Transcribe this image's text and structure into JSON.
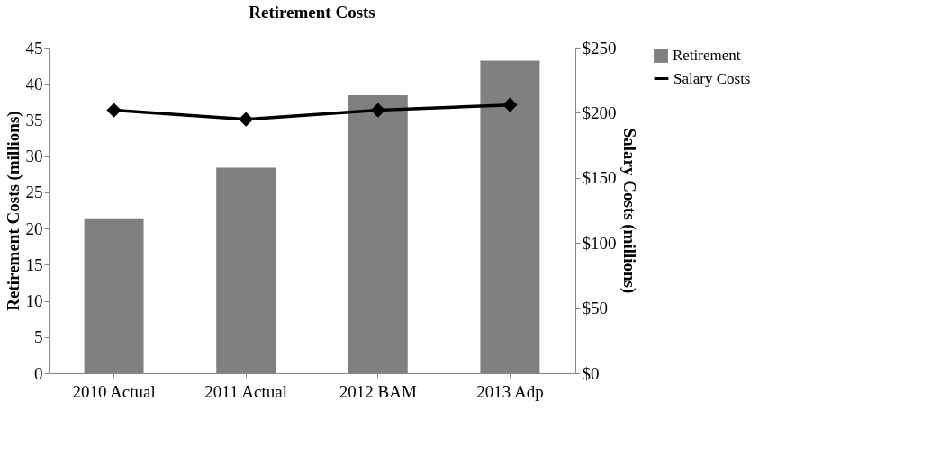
{
  "chart_data": {
    "type": "bar",
    "title": "Retirement Costs",
    "categories": [
      "2010 Actual",
      "2011 Actual",
      "2012 BAM",
      "2013 Adp"
    ],
    "series": [
      {
        "name": "Retirement",
        "color": "#808080",
        "values": [
          21.4,
          28.4,
          38.4,
          43.2
        ]
      },
      {
        "name": "Salary Costs",
        "type": "line",
        "axis": "y2",
        "color": "#000000",
        "values": [
          202,
          195,
          202,
          206
        ]
      }
    ],
    "ylabel": "Retirement Costs (millions)",
    "y2label": "Salary Costs (millions)",
    "ylim": [
      0,
      45
    ],
    "yticks": [
      0,
      5,
      10,
      15,
      20,
      25,
      30,
      35,
      40,
      45
    ],
    "y2lim": [
      0,
      250
    ],
    "y2ticks": [
      {
        "value": 0,
        "label": "$0"
      },
      {
        "value": 50,
        "label": "$50"
      },
      {
        "value": 100,
        "label": "$100"
      },
      {
        "value": 150,
        "label": "$150"
      },
      {
        "value": 200,
        "label": "$200"
      },
      {
        "value": 250,
        "label": "$250"
      }
    ],
    "legend": "right",
    "marker": "diamond",
    "grid": false
  }
}
